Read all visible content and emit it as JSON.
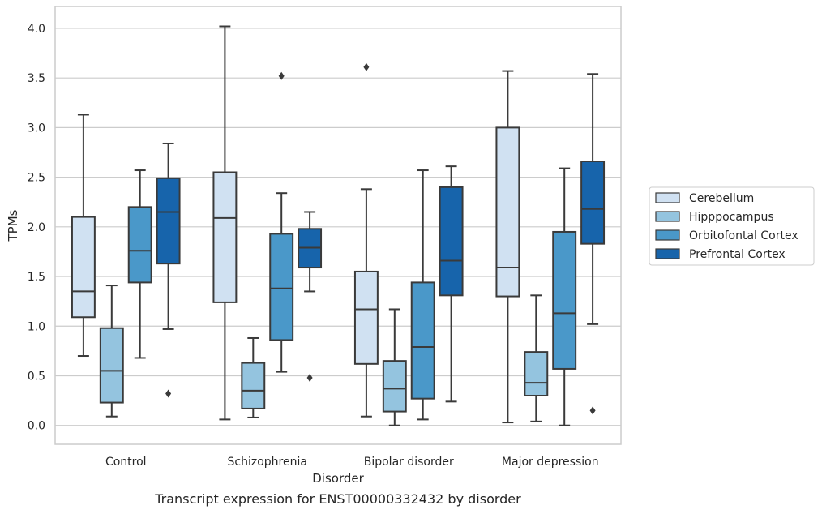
{
  "caption": "Transcript expression for ENST00000332432 by disorder",
  "chart_data": {
    "type": "boxplot",
    "title": "",
    "xlabel": "Disorder",
    "ylabel": "TPMs",
    "ylim": [
      -0.19,
      4.22
    ],
    "yticks": [
      "0.0",
      "0.5",
      "1.0",
      "1.5",
      "2.0",
      "2.5",
      "3.0",
      "3.5",
      "4.0"
    ],
    "grid": "horizontal",
    "legend_position": "right",
    "categories": [
      "Control",
      "Schizophrenia",
      "Bipolar disorder",
      "Major depression"
    ],
    "series": [
      {
        "name": "Cerebellum",
        "color": "#d0e1f2",
        "boxes": [
          {
            "whislo": 0.7,
            "q1": 1.09,
            "med": 1.35,
            "q3": 2.1,
            "whishi": 3.13,
            "fliers": []
          },
          {
            "whislo": 0.06,
            "q1": 1.24,
            "med": 2.09,
            "q3": 2.55,
            "whishi": 4.02,
            "fliers": []
          },
          {
            "whislo": 0.09,
            "q1": 0.62,
            "med": 1.17,
            "q3": 1.55,
            "whishi": 2.38,
            "fliers": [
              3.61
            ]
          },
          {
            "whislo": 0.03,
            "q1": 1.3,
            "med": 1.59,
            "q3": 3.0,
            "whishi": 3.57,
            "fliers": []
          }
        ]
      },
      {
        "name": "Hipppocampus",
        "color": "#94c4df",
        "boxes": [
          {
            "whislo": 0.09,
            "q1": 0.23,
            "med": 0.55,
            "q3": 0.98,
            "whishi": 1.41,
            "fliers": []
          },
          {
            "whislo": 0.08,
            "q1": 0.17,
            "med": 0.35,
            "q3": 0.63,
            "whishi": 0.88,
            "fliers": []
          },
          {
            "whislo": 0.0,
            "q1": 0.14,
            "med": 0.37,
            "q3": 0.65,
            "whishi": 1.17,
            "fliers": []
          },
          {
            "whislo": 0.04,
            "q1": 0.3,
            "med": 0.43,
            "q3": 0.74,
            "whishi": 1.31,
            "fliers": []
          }
        ]
      },
      {
        "name": "Orbitofontal Cortex",
        "color": "#4a98c9",
        "boxes": [
          {
            "whislo": 0.68,
            "q1": 1.44,
            "med": 1.76,
            "q3": 2.2,
            "whishi": 2.57,
            "fliers": []
          },
          {
            "whislo": 0.54,
            "q1": 0.86,
            "med": 1.38,
            "q3": 1.93,
            "whishi": 2.34,
            "fliers": [
              3.52
            ]
          },
          {
            "whislo": 0.06,
            "q1": 0.27,
            "med": 0.79,
            "q3": 1.44,
            "whishi": 2.57,
            "fliers": []
          },
          {
            "whislo": 0.0,
            "q1": 0.57,
            "med": 1.13,
            "q3": 1.95,
            "whishi": 2.59,
            "fliers": []
          }
        ]
      },
      {
        "name": "Prefrontal Cortex",
        "color": "#1764ab",
        "boxes": [
          {
            "whislo": 0.97,
            "q1": 1.63,
            "med": 2.15,
            "q3": 2.49,
            "whishi": 2.84,
            "fliers": [
              0.32
            ]
          },
          {
            "whislo": 1.35,
            "q1": 1.59,
            "med": 1.79,
            "q3": 1.98,
            "whishi": 2.15,
            "fliers": [
              0.48
            ]
          },
          {
            "whislo": 0.24,
            "q1": 1.31,
            "med": 1.66,
            "q3": 2.4,
            "whishi": 2.61,
            "fliers": []
          },
          {
            "whislo": 1.02,
            "q1": 1.83,
            "med": 2.18,
            "q3": 2.66,
            "whishi": 3.54,
            "fliers": [
              0.15
            ]
          }
        ]
      }
    ]
  }
}
